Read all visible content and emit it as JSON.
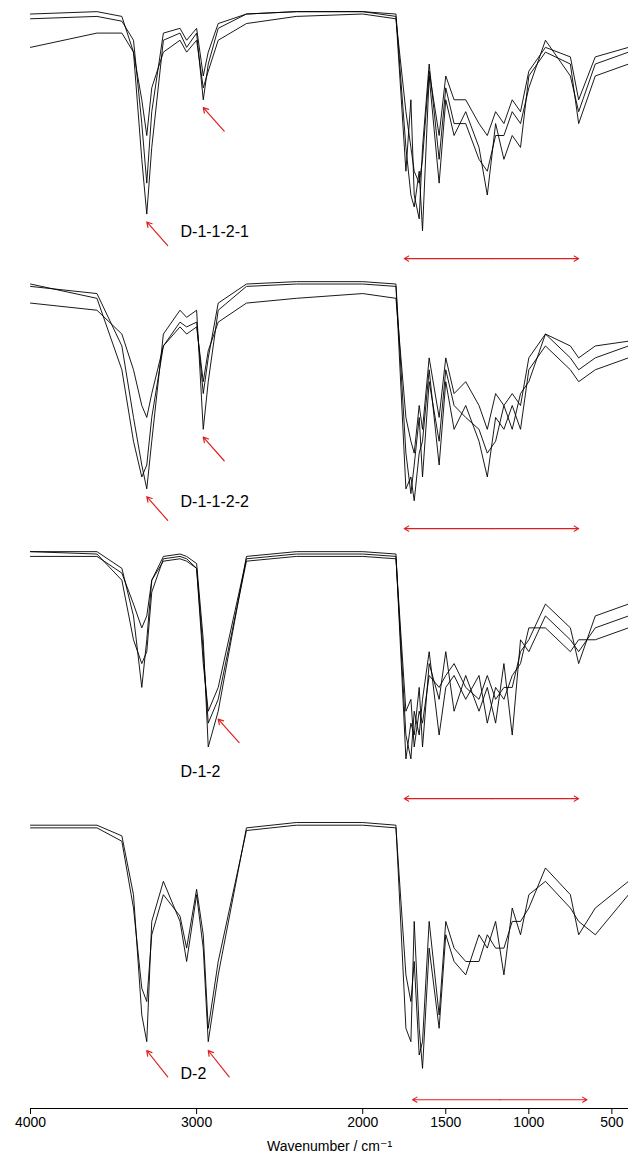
{
  "chart_data": [
    {
      "type": "line",
      "title": "D-1-1-2-1",
      "tick_labels": false,
      "xlim": [
        4000,
        400
      ],
      "ylim": [
        -10,
        100
      ],
      "x": [
        4000,
        3600,
        3450,
        3380,
        3330,
        3300,
        3270,
        3200,
        3100,
        3060,
        3000,
        2960,
        2930,
        2870,
        2700,
        2400,
        2000,
        1800,
        1740,
        1710,
        1690,
        1660,
        1640,
        1600,
        1540,
        1500,
        1450,
        1380,
        1300,
        1250,
        1200,
        1150,
        1100,
        1050,
        1000,
        900,
        750,
        700,
        600,
        400
      ],
      "series": [
        {
          "color": "#000000",
          "values": [
            96,
            97,
            95,
            80,
            35,
            12,
            40,
            85,
            88,
            82,
            88,
            60,
            75,
            90,
            96,
            97,
            97,
            96,
            40,
            20,
            15,
            30,
            5,
            70,
            25,
            60,
            45,
            55,
            40,
            20,
            50,
            35,
            45,
            40,
            70,
            80,
            75,
            50,
            70,
            75
          ]
        },
        {
          "color": "#000000",
          "values": [
            94,
            95,
            93,
            85,
            50,
            25,
            55,
            88,
            90,
            85,
            90,
            70,
            80,
            92,
            96,
            97,
            97,
            95,
            30,
            60,
            20,
            10,
            40,
            75,
            35,
            65,
            50,
            50,
            35,
            30,
            45,
            45,
            55,
            50,
            65,
            85,
            70,
            55,
            75,
            80
          ]
        },
        {
          "color": "#000000",
          "values": [
            82,
            88,
            88,
            80,
            60,
            45,
            65,
            80,
            85,
            80,
            85,
            65,
            72,
            85,
            92,
            95,
            96,
            94,
            55,
            40,
            30,
            25,
            35,
            72,
            45,
            70,
            60,
            60,
            50,
            45,
            55,
            50,
            60,
            55,
            72,
            82,
            78,
            60,
            78,
            82
          ]
        }
      ],
      "arrows": [
        3300,
        2960
      ],
      "range_arrow": [
        1750,
        700
      ],
      "annotation_color": "#e02020"
    },
    {
      "type": "line",
      "title": "D-1-1-2-2",
      "tick_labels": false,
      "xlim": [
        4000,
        400
      ],
      "ylim": [
        -10,
        100
      ],
      "x": [
        4000,
        3600,
        3450,
        3380,
        3330,
        3300,
        3270,
        3200,
        3100,
        3060,
        3000,
        2960,
        2930,
        2870,
        2700,
        2400,
        2000,
        1800,
        1740,
        1710,
        1690,
        1660,
        1640,
        1600,
        1540,
        1500,
        1450,
        1380,
        1300,
        1250,
        1200,
        1150,
        1100,
        1050,
        1000,
        900,
        750,
        700,
        600,
        400
      ],
      "series": [
        {
          "color": "#000000",
          "values": [
            95,
            92,
            70,
            40,
            20,
            10,
            30,
            75,
            85,
            82,
            85,
            35,
            55,
            85,
            95,
            96,
            96,
            95,
            10,
            15,
            5,
            25,
            30,
            60,
            20,
            55,
            35,
            45,
            30,
            15,
            40,
            35,
            45,
            35,
            60,
            70,
            60,
            55,
            60,
            65
          ]
        },
        {
          "color": "#000000",
          "values": [
            96,
            90,
            60,
            30,
            15,
            20,
            40,
            70,
            80,
            78,
            80,
            50,
            65,
            88,
            96,
            97,
            97,
            96,
            25,
            8,
            20,
            40,
            15,
            55,
            30,
            60,
            45,
            40,
            35,
            25,
            30,
            45,
            35,
            50,
            55,
            75,
            65,
            60,
            65,
            70
          ]
        },
        {
          "color": "#000000",
          "values": [
            88,
            85,
            75,
            60,
            45,
            40,
            50,
            70,
            78,
            75,
            78,
            55,
            68,
            80,
            88,
            90,
            92,
            90,
            40,
            30,
            25,
            45,
            35,
            65,
            40,
            65,
            50,
            55,
            45,
            35,
            50,
            45,
            50,
            45,
            65,
            75,
            70,
            65,
            70,
            72
          ]
        }
      ],
      "arrows": [
        3300,
        2960
      ],
      "range_arrow": [
        1750,
        700
      ],
      "annotation_color": "#e02020"
    },
    {
      "type": "line",
      "title": "D-1-2",
      "tick_labels": false,
      "xlim": [
        4000,
        400
      ],
      "ylim": [
        -10,
        100
      ],
      "x": [
        4000,
        3600,
        3450,
        3380,
        3330,
        3300,
        3270,
        3200,
        3100,
        3060,
        3000,
        2960,
        2930,
        2870,
        2700,
        2400,
        2000,
        1800,
        1740,
        1710,
        1690,
        1660,
        1640,
        1600,
        1540,
        1500,
        1450,
        1380,
        1300,
        1250,
        1200,
        1150,
        1100,
        1050,
        1000,
        900,
        750,
        700,
        600,
        400
      ],
      "series": [
        {
          "color": "#000000",
          "values": [
            97,
            97,
            90,
            70,
            40,
            60,
            85,
            95,
            96,
            95,
            92,
            60,
            15,
            30,
            95,
            97,
            97,
            96,
            10,
            25,
            20,
            40,
            15,
            50,
            35,
            55,
            30,
            45,
            30,
            40,
            25,
            50,
            20,
            60,
            55,
            70,
            60,
            55,
            65,
            70
          ]
        },
        {
          "color": "#000000",
          "values": [
            97,
            96,
            85,
            60,
            50,
            55,
            80,
            94,
            95,
            94,
            90,
            50,
            30,
            40,
            94,
            96,
            96,
            95,
            20,
            10,
            30,
            20,
            35,
            55,
            20,
            40,
            45,
            35,
            45,
            25,
            40,
            35,
            45,
            50,
            65,
            65,
            55,
            60,
            60,
            65
          ]
        },
        {
          "color": "#000000",
          "values": [
            95,
            95,
            88,
            75,
            65,
            70,
            85,
            93,
            94,
            93,
            90,
            55,
            25,
            35,
            93,
            95,
            95,
            94,
            30,
            35,
            15,
            30,
            25,
            45,
            40,
            45,
            50,
            40,
            35,
            45,
            35,
            40,
            40,
            55,
            60,
            75,
            65,
            50,
            70,
            75
          ]
        }
      ],
      "arrows": [
        2870
      ],
      "range_arrow": [
        1750,
        700
      ],
      "annotation_color": "#e02020"
    },
    {
      "type": "line",
      "title": "D-2",
      "tick_labels": "x",
      "x_label": "Wavenumber / cm⁻¹",
      "xlim": [
        4000,
        400
      ],
      "ylim": [
        -10,
        100
      ],
      "xticks": [
        4000,
        3000,
        2000,
        1500,
        1000,
        500
      ],
      "x": [
        4000,
        3600,
        3450,
        3380,
        3330,
        3300,
        3270,
        3200,
        3100,
        3060,
        3000,
        2960,
        2930,
        2870,
        2700,
        2400,
        2000,
        1800,
        1740,
        1710,
        1690,
        1660,
        1640,
        1600,
        1540,
        1500,
        1450,
        1380,
        1300,
        1250,
        1200,
        1150,
        1100,
        1050,
        1000,
        900,
        750,
        700,
        600,
        400
      ],
      "series": [
        {
          "color": "#000000",
          "values": [
            96,
            96,
            92,
            70,
            25,
            15,
            60,
            75,
            60,
            45,
            70,
            50,
            15,
            40,
            95,
            97,
            97,
            96,
            20,
            15,
            60,
            20,
            5,
            50,
            20,
            55,
            45,
            40,
            55,
            50,
            60,
            40,
            65,
            55,
            70,
            75,
            65,
            60,
            55,
            70
          ]
        },
        {
          "color": "#000000",
          "values": [
            95,
            95,
            90,
            65,
            35,
            30,
            55,
            70,
            62,
            50,
            72,
            55,
            20,
            45,
            94,
            96,
            96,
            95,
            40,
            30,
            45,
            10,
            15,
            60,
            25,
            60,
            50,
            45,
            45,
            55,
            50,
            50,
            60,
            60,
            65,
            80,
            70,
            55,
            65,
            75
          ]
        }
      ],
      "arrows": [
        3300,
        2930
      ],
      "range_arrow": [
        1700,
        650
      ],
      "annotation_color": "#e02020"
    }
  ]
}
